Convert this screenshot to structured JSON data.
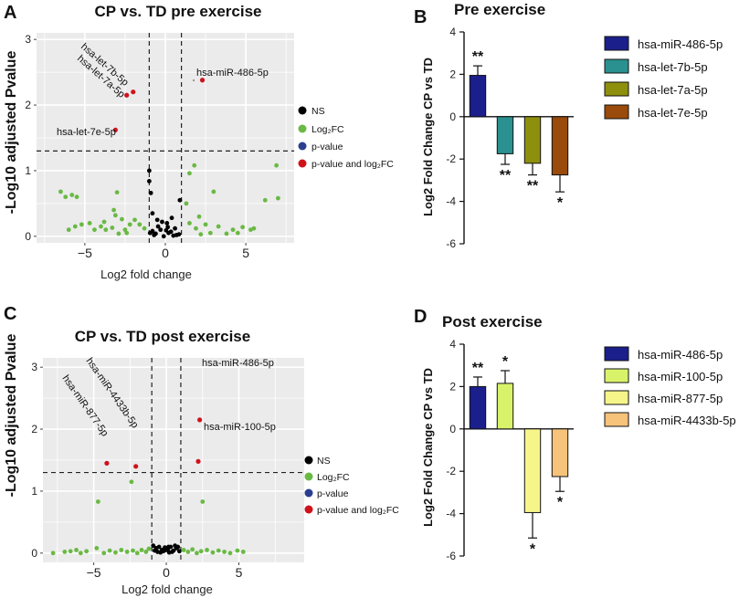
{
  "panels": {
    "a": "A",
    "b": "B",
    "c": "C",
    "d": "D"
  },
  "legend_volcano": [
    "NS",
    "Log₂FC",
    "p-value",
    "p-value and log₂FC"
  ],
  "colors": {
    "ns": "#000000",
    "log2fc": "#6ab944",
    "pvalue": "#2a3f8f",
    "both": "#d0121b"
  },
  "chart_data": [
    {
      "id": "A",
      "type": "scatter",
      "title": "CP vs. TD pre exercise",
      "xlabel": "Log2 fold change",
      "ylabel": "-Log10 adjusted Pvalue",
      "xlim": [
        -8,
        8
      ],
      "ylim": [
        -0.1,
        3.1
      ],
      "xticks": [
        -5,
        0,
        5
      ],
      "yticks": [
        0,
        1,
        2,
        3
      ],
      "vlines": [
        -1,
        1
      ],
      "hline": 1.3,
      "grid": true,
      "legend": "right",
      "labeled": [
        {
          "label": "hsa-miR-486-5p",
          "x": 2.3,
          "y": 2.38
        },
        {
          "label": "hsa-let-7b-5p",
          "x": -2.0,
          "y": 2.2
        },
        {
          "label": "hsa-let-7a-5p",
          "x": -2.4,
          "y": 2.15
        },
        {
          "label": "hsa-let-7e-5p",
          "x": -3.1,
          "y": 1.62
        }
      ],
      "ns": [
        [
          -1.0,
          1.0
        ],
        [
          -1.0,
          0.84
        ],
        [
          -0.9,
          0.66
        ],
        [
          -0.8,
          0.35
        ],
        [
          -0.5,
          0.25
        ],
        [
          -0.2,
          0.22
        ],
        [
          0.1,
          0.2
        ],
        [
          0.4,
          0.28
        ],
        [
          0.9,
          0.55
        ],
        [
          0.6,
          0.12
        ],
        [
          -0.3,
          0.1
        ],
        [
          0.2,
          0.05
        ],
        [
          -0.6,
          0.04
        ],
        [
          0.7,
          0.02
        ],
        [
          -0.1,
          0.0
        ],
        [
          -0.8,
          0.08
        ],
        [
          0.35,
          0.07
        ],
        [
          0.85,
          0.03
        ],
        [
          -0.45,
          0.15
        ],
        [
          0.15,
          0.14
        ],
        [
          -0.7,
          0.02
        ],
        [
          0.5,
          0.01
        ],
        [
          -0.95,
          0.05
        ],
        [
          0.05,
          0.09
        ]
      ],
      "log2fc": [
        [
          -6.5,
          0.68
        ],
        [
          -6.2,
          0.6
        ],
        [
          -5.8,
          0.63
        ],
        [
          -5.5,
          0.6
        ],
        [
          -3.0,
          0.67
        ],
        [
          -3.2,
          0.4
        ],
        [
          -3.1,
          0.32
        ],
        [
          -2.7,
          0.26
        ],
        [
          -2.2,
          0.18
        ],
        [
          -4.0,
          0.15
        ],
        [
          -4.7,
          0.2
        ],
        [
          -5.2,
          0.18
        ],
        [
          -6.0,
          0.1
        ],
        [
          -2.5,
          0.1
        ],
        [
          -2.4,
          0.05
        ],
        [
          -3.7,
          0.1
        ],
        [
          -4.4,
          0.1
        ],
        [
          -1.6,
          0.18
        ],
        [
          -1.3,
          0.12
        ],
        [
          -2.9,
          0.04
        ],
        [
          -5.6,
          0.15
        ],
        [
          -3.3,
          0.13
        ],
        [
          1.5,
          0.2
        ],
        [
          1.8,
          1.08
        ],
        [
          1.5,
          0.96
        ],
        [
          1.3,
          0.5
        ],
        [
          2.1,
          0.3
        ],
        [
          2.5,
          0.18
        ],
        [
          3.0,
          0.68
        ],
        [
          3.3,
          0.15
        ],
        [
          4.2,
          0.1
        ],
        [
          4.8,
          0.14
        ],
        [
          5.3,
          0.1
        ],
        [
          5.5,
          0.12
        ],
        [
          6.2,
          0.55
        ],
        [
          7.0,
          0.58
        ],
        [
          6.9,
          1.08
        ],
        [
          2.8,
          0.05
        ],
        [
          3.8,
          0.04
        ],
        [
          1.9,
          0.12
        ],
        [
          2.2,
          0.03
        ],
        [
          4.5,
          0.05
        ],
        [
          -1.9,
          0.25
        ],
        [
          -3.8,
          0.22
        ]
      ]
    },
    {
      "id": "B",
      "type": "bar",
      "title": "Pre exercise",
      "ylabel": "Log2 Fold Change CP vs TD",
      "ylim": [
        -6,
        4
      ],
      "yticks": [
        -6,
        -4,
        -2,
        0,
        2,
        4
      ],
      "categories": [
        "hsa-miR-486-5p",
        "hsa-let-7b-5p",
        "hsa-let-7a-5p",
        "hsa-let-7e-5p"
      ],
      "values": [
        1.95,
        -1.75,
        -2.2,
        -2.75
      ],
      "errors": [
        0.45,
        0.5,
        0.55,
        0.8
      ],
      "colors": [
        "#1b1f8c",
        "#2a9190",
        "#8f8f0e",
        "#9a4a0a"
      ],
      "significance": [
        "**",
        "**",
        "**",
        "*"
      ]
    },
    {
      "id": "C",
      "type": "scatter",
      "title": "CP vs. TD post exercise",
      "xlabel": "Log2 fold change",
      "ylabel": "-Log10 adjusted Pvalue",
      "xlim": [
        -8.5,
        9.5
      ],
      "ylim": [
        -0.15,
        3.15
      ],
      "xticks": [
        -5,
        0,
        5
      ],
      "yticks": [
        0,
        1,
        2,
        3
      ],
      "vlines": [
        -1,
        1
      ],
      "hline": 1.3,
      "grid": true,
      "legend": "right",
      "labeled": [
        {
          "label": "hsa-miR-486-5p",
          "x": 2.3,
          "y": 2.15
        },
        {
          "label": "hsa-miR-100-5p",
          "x": 2.2,
          "y": 1.48
        },
        {
          "label": "hsa-miR-4433b-5p",
          "x": -2.1,
          "y": 1.4
        },
        {
          "label": "hsa-miR-877-5p",
          "x": -4.1,
          "y": 1.45
        }
      ],
      "ns": [
        [
          -0.9,
          0.12
        ],
        [
          -0.7,
          0.08
        ],
        [
          -0.5,
          0.1
        ],
        [
          -0.3,
          0.05
        ],
        [
          -0.1,
          0.09
        ],
        [
          0.1,
          0.06
        ],
        [
          0.3,
          0.1
        ],
        [
          0.5,
          0.04
        ],
        [
          0.7,
          0.08
        ],
        [
          0.9,
          0.03
        ],
        [
          -0.6,
          0.02
        ],
        [
          0.2,
          0.01
        ],
        [
          -0.2,
          0.03
        ],
        [
          0.6,
          0.12
        ],
        [
          -0.8,
          0.04
        ],
        [
          0.4,
          0.02
        ],
        [
          0.0,
          0.05
        ],
        [
          0.8,
          0.1
        ],
        [
          -0.4,
          0.01
        ],
        [
          0.15,
          0.1
        ]
      ],
      "log2fc": [
        [
          -4.7,
          0.83
        ],
        [
          -2.4,
          1.15
        ],
        [
          2.5,
          0.83
        ],
        [
          -7.8,
          0.0
        ],
        [
          -7.0,
          0.02
        ],
        [
          -6.2,
          0.05
        ],
        [
          -5.5,
          0.03
        ],
        [
          -4.8,
          0.08
        ],
        [
          -4.3,
          0.0
        ],
        [
          -3.9,
          0.04
        ],
        [
          -3.5,
          0.01
        ],
        [
          -3.1,
          0.05
        ],
        [
          -2.7,
          0.02
        ],
        [
          -2.3,
          0.04
        ],
        [
          -2.0,
          0.0
        ],
        [
          -1.7,
          0.05
        ],
        [
          -1.4,
          0.02
        ],
        [
          -1.2,
          0.07
        ],
        [
          1.2,
          0.05
        ],
        [
          1.5,
          0.02
        ],
        [
          1.8,
          0.06
        ],
        [
          2.1,
          0.0
        ],
        [
          2.4,
          0.03
        ],
        [
          2.8,
          0.05
        ],
        [
          3.2,
          0.01
        ],
        [
          3.6,
          0.04
        ],
        [
          4.0,
          0.02
        ],
        [
          4.4,
          0.0
        ],
        [
          4.9,
          0.04
        ],
        [
          5.3,
          0.02
        ],
        [
          -5.9,
          0.0
        ],
        [
          -6.6,
          0.03
        ]
      ]
    },
    {
      "id": "D",
      "type": "bar",
      "title": "Post exercise",
      "ylabel": "Log2 Fold Change CP vs TD",
      "ylim": [
        -6,
        4
      ],
      "yticks": [
        -6,
        -4,
        -2,
        0,
        2,
        4
      ],
      "categories": [
        "hsa-miR-486-5p",
        "hsa-miR-100-5p",
        "hsa-miR-877-5p",
        "hsa-miR-4433b-5p"
      ],
      "values": [
        2.0,
        2.15,
        -3.95,
        -2.25
      ],
      "errors": [
        0.45,
        0.6,
        1.2,
        0.7
      ],
      "colors": [
        "#1b1f8c",
        "#d8f36a",
        "#f5f58a",
        "#f7c27a"
      ],
      "significance": [
        "**",
        "*",
        "*",
        "*"
      ]
    }
  ]
}
